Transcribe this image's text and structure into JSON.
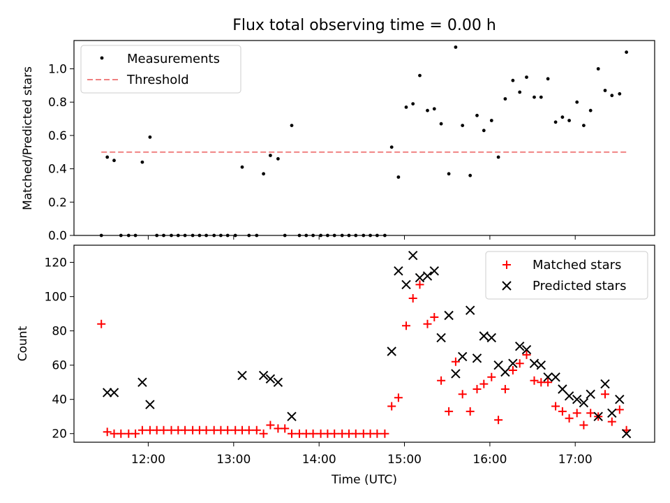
{
  "chart_data": [
    {
      "type": "scatter",
      "title": "Flux total observing time = 0.00 h",
      "xlabel": "",
      "ylabel": "Matched/Predicted stars",
      "xlim": [
        11.13,
        17.93
      ],
      "ylim": [
        0.0,
        1.17
      ],
      "yticks": [
        0.0,
        0.2,
        0.4,
        0.6,
        0.8,
        1.0
      ],
      "ytick_labels": [
        "0.0",
        "0.2",
        "0.4",
        "0.6",
        "0.8",
        "1.0"
      ],
      "legend": "top-left",
      "legend_entries": [
        "Measurements",
        "Threshold"
      ],
      "series": [
        {
          "name": "Measurements",
          "marker": "dot",
          "color": "#000000",
          "points": [
            [
              11.45,
              0.0
            ],
            [
              11.52,
              0.47
            ],
            [
              11.6,
              0.45
            ],
            [
              11.68,
              0.0
            ],
            [
              11.77,
              0.0
            ],
            [
              11.85,
              0.0
            ],
            [
              11.93,
              0.44
            ],
            [
              12.02,
              0.59
            ],
            [
              12.1,
              0.0
            ],
            [
              12.18,
              0.0
            ],
            [
              12.27,
              0.0
            ],
            [
              12.35,
              0.0
            ],
            [
              12.43,
              0.0
            ],
            [
              12.52,
              0.0
            ],
            [
              12.6,
              0.0
            ],
            [
              12.68,
              0.0
            ],
            [
              12.77,
              0.0
            ],
            [
              12.85,
              0.0
            ],
            [
              12.93,
              0.0
            ],
            [
              13.02,
              0.0
            ],
            [
              13.1,
              0.41
            ],
            [
              13.18,
              0.0
            ],
            [
              13.27,
              0.0
            ],
            [
              13.35,
              0.37
            ],
            [
              13.43,
              0.48
            ],
            [
              13.52,
              0.46
            ],
            [
              13.6,
              0.0
            ],
            [
              13.68,
              0.66
            ],
            [
              13.77,
              0.0
            ],
            [
              13.85,
              0.0
            ],
            [
              13.93,
              0.0
            ],
            [
              14.02,
              0.0
            ],
            [
              14.1,
              0.0
            ],
            [
              14.18,
              0.0
            ],
            [
              14.27,
              0.0
            ],
            [
              14.35,
              0.0
            ],
            [
              14.43,
              0.0
            ],
            [
              14.52,
              0.0
            ],
            [
              14.6,
              0.0
            ],
            [
              14.68,
              0.0
            ],
            [
              14.77,
              0.0
            ],
            [
              14.85,
              0.53
            ],
            [
              14.93,
              0.35
            ],
            [
              15.02,
              0.77
            ],
            [
              15.1,
              0.79
            ],
            [
              15.18,
              0.96
            ],
            [
              15.27,
              0.75
            ],
            [
              15.35,
              0.76
            ],
            [
              15.43,
              0.67
            ],
            [
              15.52,
              0.37
            ],
            [
              15.6,
              1.13
            ],
            [
              15.68,
              0.66
            ],
            [
              15.77,
              0.36
            ],
            [
              15.85,
              0.72
            ],
            [
              15.93,
              0.63
            ],
            [
              16.02,
              0.69
            ],
            [
              16.1,
              0.47
            ],
            [
              16.18,
              0.82
            ],
            [
              16.27,
              0.93
            ],
            [
              16.35,
              0.86
            ],
            [
              16.43,
              0.95
            ],
            [
              16.52,
              0.83
            ],
            [
              16.6,
              0.83
            ],
            [
              16.68,
              0.94
            ],
            [
              16.77,
              0.68
            ],
            [
              16.85,
              0.71
            ],
            [
              16.93,
              0.69
            ],
            [
              17.02,
              0.8
            ],
            [
              17.1,
              0.66
            ],
            [
              17.18,
              0.75
            ],
            [
              17.27,
              1.0
            ],
            [
              17.35,
              0.87
            ],
            [
              17.43,
              0.84
            ],
            [
              17.52,
              0.85
            ],
            [
              17.6,
              1.1
            ]
          ]
        },
        {
          "name": "Threshold",
          "marker": "dashed-line",
          "color": "#f08080",
          "points": [
            [
              11.45,
              0.5
            ],
            [
              17.6,
              0.5
            ]
          ]
        }
      ]
    },
    {
      "type": "scatter",
      "title": "",
      "xlabel": "Time (UTC)",
      "ylabel": "Count",
      "xlim": [
        11.13,
        17.93
      ],
      "ylim": [
        15,
        130
      ],
      "xticks": [
        12,
        13,
        14,
        15,
        16,
        17
      ],
      "xtick_labels": [
        "12:00",
        "13:00",
        "14:00",
        "15:00",
        "16:00",
        "17:00"
      ],
      "yticks": [
        20,
        40,
        60,
        80,
        100,
        120
      ],
      "ytick_labels": [
        "20",
        "40",
        "60",
        "80",
        "100",
        "120"
      ],
      "legend": "top-right",
      "legend_entries": [
        "Matched stars",
        "Predicted stars"
      ],
      "series": [
        {
          "name": "Matched stars",
          "marker": "plus",
          "color": "#ff0000",
          "points": [
            [
              11.45,
              84
            ],
            [
              11.52,
              21
            ],
            [
              11.6,
              20
            ],
            [
              11.68,
              20
            ],
            [
              11.77,
              20
            ],
            [
              11.85,
              20
            ],
            [
              11.93,
              22
            ],
            [
              12.02,
              22
            ],
            [
              12.1,
              22
            ],
            [
              12.18,
              22
            ],
            [
              12.27,
              22
            ],
            [
              12.35,
              22
            ],
            [
              12.43,
              22
            ],
            [
              12.52,
              22
            ],
            [
              12.6,
              22
            ],
            [
              12.68,
              22
            ],
            [
              12.77,
              22
            ],
            [
              12.85,
              22
            ],
            [
              12.93,
              22
            ],
            [
              13.02,
              22
            ],
            [
              13.1,
              22
            ],
            [
              13.18,
              22
            ],
            [
              13.27,
              22
            ],
            [
              13.35,
              20
            ],
            [
              13.43,
              25
            ],
            [
              13.52,
              23
            ],
            [
              13.6,
              23
            ],
            [
              13.68,
              20
            ],
            [
              13.77,
              20
            ],
            [
              13.85,
              20
            ],
            [
              13.93,
              20
            ],
            [
              14.02,
              20
            ],
            [
              14.1,
              20
            ],
            [
              14.18,
              20
            ],
            [
              14.27,
              20
            ],
            [
              14.35,
              20
            ],
            [
              14.43,
              20
            ],
            [
              14.52,
              20
            ],
            [
              14.6,
              20
            ],
            [
              14.68,
              20
            ],
            [
              14.77,
              20
            ],
            [
              14.85,
              36
            ],
            [
              14.93,
              41
            ],
            [
              15.02,
              83
            ],
            [
              15.1,
              99
            ],
            [
              15.18,
              107
            ],
            [
              15.27,
              84
            ],
            [
              15.35,
              88
            ],
            [
              15.43,
              51
            ],
            [
              15.52,
              33
            ],
            [
              15.6,
              62
            ],
            [
              15.68,
              43
            ],
            [
              15.77,
              33
            ],
            [
              15.85,
              46
            ],
            [
              15.93,
              49
            ],
            [
              16.02,
              53
            ],
            [
              16.1,
              28
            ],
            [
              16.18,
              46
            ],
            [
              16.27,
              57
            ],
            [
              16.35,
              61
            ],
            [
              16.43,
              66
            ],
            [
              16.52,
              51
            ],
            [
              16.6,
              50
            ],
            [
              16.68,
              50
            ],
            [
              16.77,
              36
            ],
            [
              16.85,
              33
            ],
            [
              16.93,
              29
            ],
            [
              17.02,
              32
            ],
            [
              17.1,
              25
            ],
            [
              17.18,
              32
            ],
            [
              17.27,
              30
            ],
            [
              17.35,
              43
            ],
            [
              17.43,
              27
            ],
            [
              17.52,
              34
            ],
            [
              17.6,
              22
            ]
          ]
        },
        {
          "name": "Predicted stars",
          "marker": "x",
          "color": "#000000",
          "points": [
            [
              11.52,
              44
            ],
            [
              11.6,
              44
            ],
            [
              11.93,
              50
            ],
            [
              12.02,
              37
            ],
            [
              13.1,
              54
            ],
            [
              13.35,
              54
            ],
            [
              13.43,
              52
            ],
            [
              13.52,
              50
            ],
            [
              13.68,
              30
            ],
            [
              14.85,
              68
            ],
            [
              14.93,
              115
            ],
            [
              15.02,
              107
            ],
            [
              15.1,
              124
            ],
            [
              15.18,
              111
            ],
            [
              15.27,
              112
            ],
            [
              15.35,
              115
            ],
            [
              15.43,
              76
            ],
            [
              15.52,
              89
            ],
            [
              15.6,
              55
            ],
            [
              15.68,
              65
            ],
            [
              15.77,
              92
            ],
            [
              15.85,
              64
            ],
            [
              15.93,
              77
            ],
            [
              16.02,
              76
            ],
            [
              16.1,
              60
            ],
            [
              16.18,
              56
            ],
            [
              16.27,
              61
            ],
            [
              16.35,
              71
            ],
            [
              16.43,
              69
            ],
            [
              16.52,
              61
            ],
            [
              16.6,
              60
            ],
            [
              16.68,
              53
            ],
            [
              16.77,
              53
            ],
            [
              16.85,
              46
            ],
            [
              16.93,
              42
            ],
            [
              17.02,
              40
            ],
            [
              17.1,
              38
            ],
            [
              17.18,
              43
            ],
            [
              17.27,
              30
            ],
            [
              17.35,
              49
            ],
            [
              17.43,
              32
            ],
            [
              17.52,
              40
            ],
            [
              17.6,
              20
            ]
          ]
        }
      ]
    }
  ]
}
